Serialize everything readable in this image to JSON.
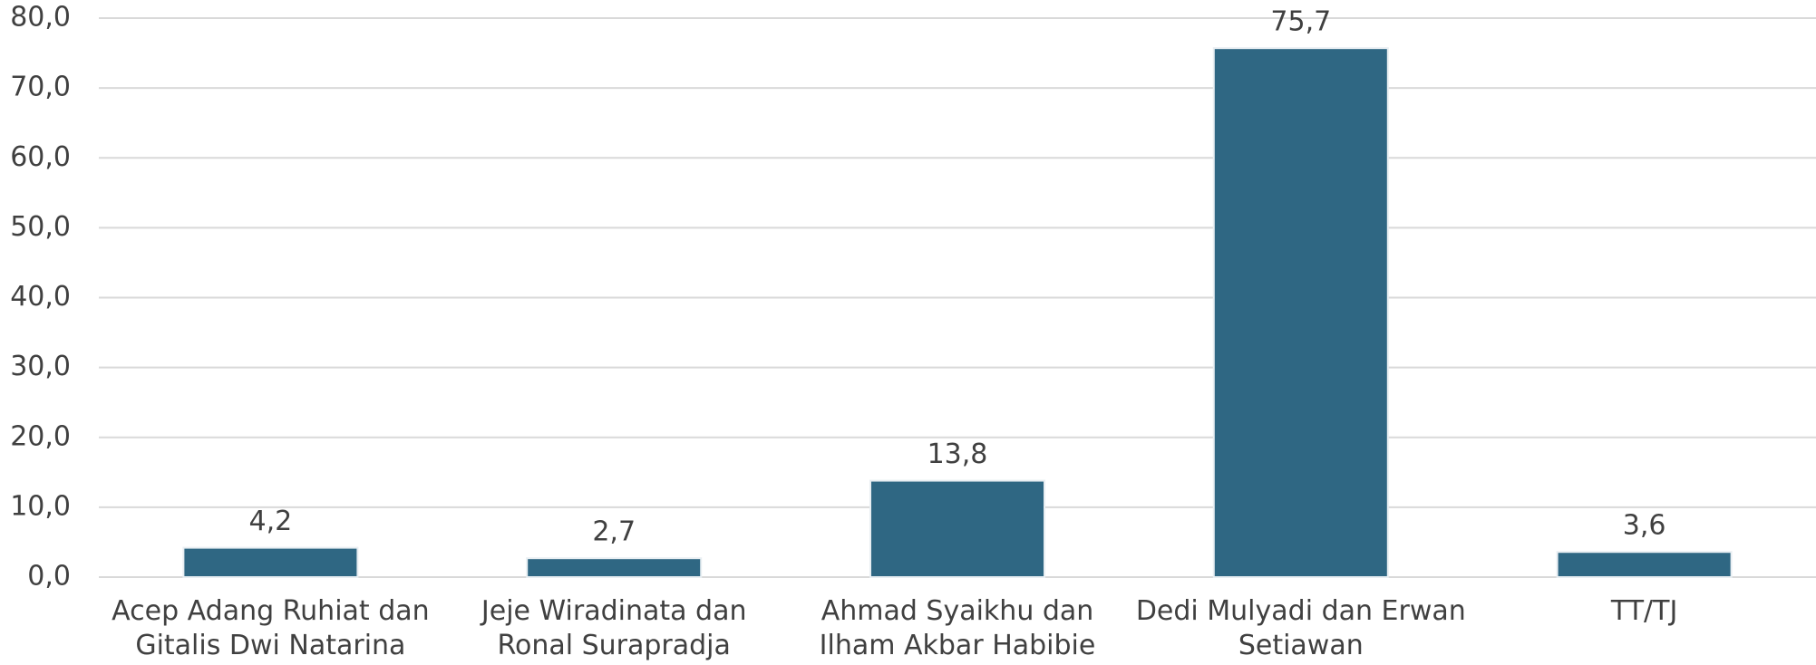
{
  "chart_data": {
    "type": "bar",
    "categories": [
      "Acep Adang Ruhiat dan Gitalis Dwi Natarina",
      "Jeje Wiradinata dan Ronal Surapradja",
      "Ahmad Syaikhu dan Ilham Akbar Habibie",
      "Dedi Mulyadi dan Erwan Setiawan",
      "TT/TJ"
    ],
    "values": [
      4.2,
      2.7,
      13.8,
      75.7,
      3.6
    ],
    "value_labels": [
      "4,2",
      "2,7",
      "13,8",
      "75,7",
      "3,6"
    ],
    "color": "#2f6783",
    "ylim": [
      0,
      80
    ],
    "yticks": [
      {
        "value": 0,
        "label": "0,0"
      },
      {
        "value": 10,
        "label": "10,0"
      },
      {
        "value": 20,
        "label": "20,0"
      },
      {
        "value": 30,
        "label": "30,0"
      },
      {
        "value": 40,
        "label": "40,0"
      },
      {
        "value": 50,
        "label": "50,0"
      },
      {
        "value": 60,
        "label": "60,0"
      },
      {
        "value": 70,
        "label": "70,0"
      },
      {
        "value": 80,
        "label": "80,0"
      }
    ],
    "grid": true
  }
}
